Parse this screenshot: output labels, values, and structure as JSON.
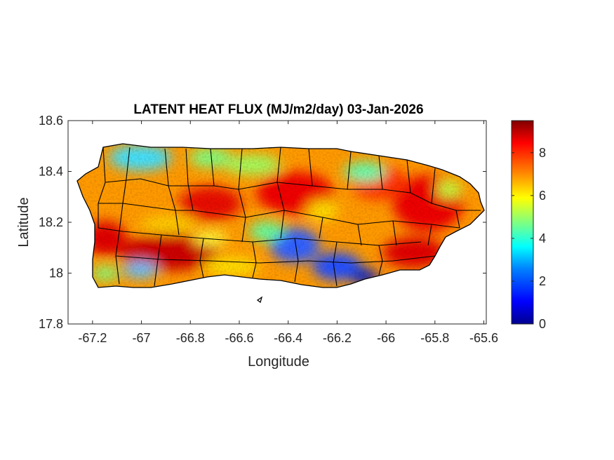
{
  "figure": {
    "title": "LATENT HEAT FLUX (MJ/m2/day) 03-Jan-2026",
    "xlabel": "Longitude",
    "ylabel": "Latitude"
  },
  "map_data": {
    "type": "raster-map",
    "region": "Puerto Rico",
    "variable": "Latent heat flux",
    "units": "MJ/m2/day",
    "date": "03-Jan-2026",
    "xlim": [
      -67.3,
      -65.59
    ],
    "ylim": [
      17.8,
      18.6
    ],
    "x_ticks": [
      -67.2,
      -67,
      -66.8,
      -66.6,
      -66.4,
      -66.2,
      -66,
      -65.8,
      -65.6
    ],
    "x_tick_labels": [
      "-67.2",
      "-67",
      "-66.8",
      "-66.6",
      "-66.4",
      "-66.2",
      "-66",
      "-65.8",
      "-65.6"
    ],
    "y_ticks": [
      17.8,
      18,
      18.2,
      18.4,
      18.6
    ],
    "y_tick_labels": [
      "17.8",
      "18",
      "18.2",
      "18.4",
      "18.6"
    ],
    "colormap": "jet",
    "colorbar": {
      "range": [
        0,
        9.5
      ],
      "ticks": [
        0,
        2,
        4,
        6,
        8
      ],
      "tick_labels": [
        "0",
        "2",
        "4",
        "6",
        "8"
      ],
      "colors": [
        "#00008f",
        "#0000ff",
        "#0080ff",
        "#00ffff",
        "#80ff80",
        "#ffff00",
        "#ff8000",
        "#ff0000",
        "#800000"
      ]
    },
    "features": "Municipality boundaries outlined in black",
    "regional_values": [
      {
        "area": "Southwest coast (-66.85, 18.06)",
        "value": 8.8
      },
      {
        "area": "Southwest corner (-67.15, 18.0)",
        "value": 8.0
      },
      {
        "area": "Northwest coast (-67.05, 18.47)",
        "value": 4.0
      },
      {
        "area": "North-central coast (-66.55, 18.47)",
        "value": 4.5
      },
      {
        "area": "Central mountains (-66.75, 18.28)",
        "value": 7.8
      },
      {
        "area": "Central (-66.42, 18.32)",
        "value": 8.3
      },
      {
        "area": "South-central (-66.38, 18.03)",
        "value": 2.0
      },
      {
        "area": "Southeast of Cayey (-66.2, 17.99)",
        "value": 1.5
      },
      {
        "area": "South coast near Guayama (-66.12, 17.98)",
        "value": 1.8
      },
      {
        "area": "East-central (-65.95, 18.2)",
        "value": 8.0
      },
      {
        "area": "Northeast (-65.82, 18.38)",
        "value": 8.6
      },
      {
        "area": "Southeast (-65.88, 18.07)",
        "value": 8.8
      },
      {
        "area": "West-central interior (-67.0, 18.2)",
        "value": 7.0
      }
    ]
  }
}
